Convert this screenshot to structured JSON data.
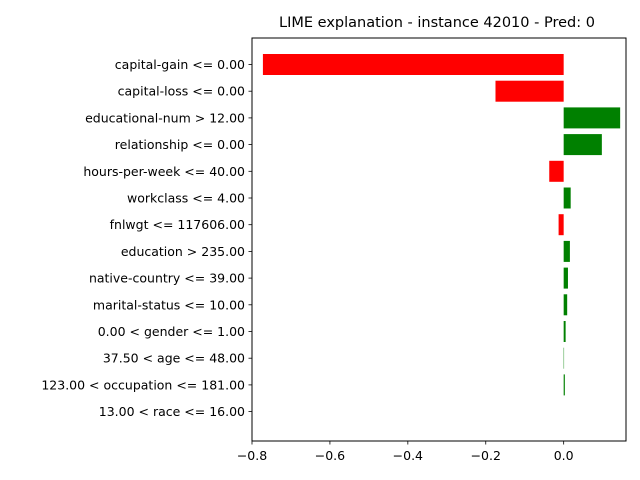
{
  "chart_data": {
    "type": "bar",
    "orientation": "horizontal",
    "title": "LIME explanation - instance 42010 - Pred: 0",
    "xlabel": "",
    "ylabel": "",
    "xlim": [
      -0.8,
      0.16
    ],
    "xticks": [
      -0.8,
      -0.6,
      -0.4,
      -0.2,
      0.0
    ],
    "xtick_labels": [
      "−0.8",
      "−0.6",
      "−0.4",
      "−0.2",
      "0.0"
    ],
    "grid": false,
    "categories": [
      "capital-gain <= 0.00",
      "capital-loss <= 0.00",
      "educational-num > 12.00",
      "relationship <= 0.00",
      "hours-per-week <= 40.00",
      "workclass <= 4.00",
      "fnlwgt <= 117606.00",
      "education > 235.00",
      "native-country <= 39.00",
      "marital-status <= 10.00",
      "0.00 < gender <= 1.00",
      "37.50 < age <= 48.00",
      "123.00 < occupation <= 181.00",
      "13.00 < race <= 16.00"
    ],
    "values": [
      -0.772,
      -0.175,
      0.145,
      0.098,
      -0.037,
      0.018,
      -0.013,
      0.016,
      0.011,
      0.009,
      0.005,
      0.001,
      0.003,
      0.0
    ],
    "colors": {
      "positive": "#008000",
      "negative": "#ff0000"
    }
  }
}
